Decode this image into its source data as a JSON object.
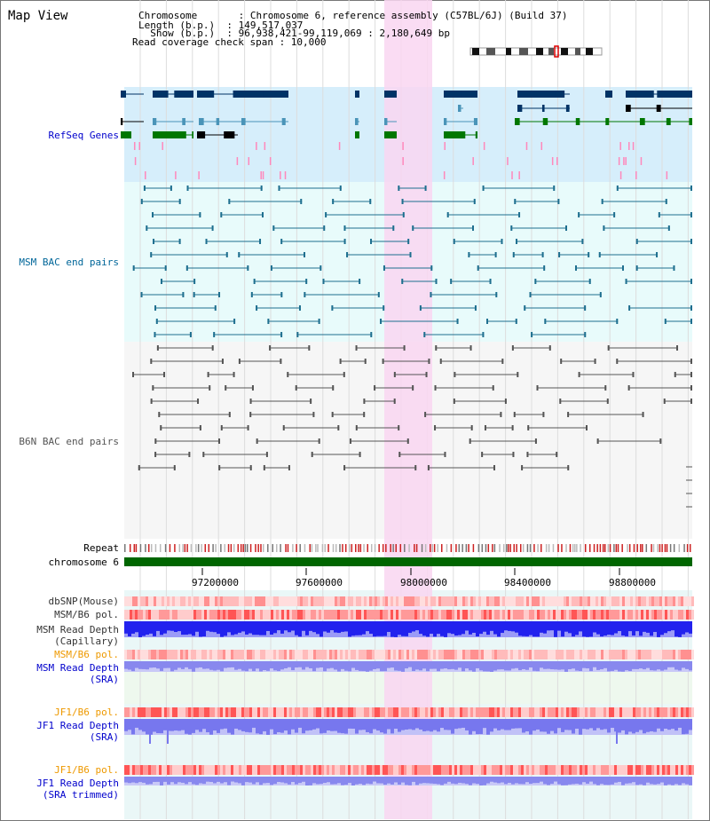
{
  "view": {
    "title": "Map View"
  },
  "info": {
    "chromosome_line": "Chromosome       : Chromosome 6, reference assembly (C57BL/6J) (Build 37)",
    "length_line": "Length (b.p.)  : 149,517,037",
    "show_line": "  Show (b.p.)  : 96,938,421-99,119,069 : 2,180,649 bp",
    "coverage_line": "Read coverage check span : 10,000"
  },
  "tracks": {
    "refseq": {
      "label": "RefSeq Genes",
      "color": "#0000cc"
    },
    "msm_bac": {
      "label": "MSM BAC end pairs",
      "color": "#006699"
    },
    "b6n_bac": {
      "label": "B6N BAC end pairs",
      "color": "#555555"
    },
    "repeat": {
      "label": "Repeat"
    },
    "chrom": {
      "label": "chromosome 6"
    },
    "dbsnp": {
      "label": "dbSNP(Mouse)"
    },
    "msm_pol": {
      "label": "MSM/B6 pol."
    },
    "msm_depth_cap": {
      "label": "MSM Read Depth\n(Capillary)"
    },
    "msm_pol2": {
      "label": "MSM/B6 pol.",
      "color": "#ee9900"
    },
    "msm_depth_sra": {
      "label": "MSM Read Depth\n(SRA)",
      "color": "#0000cc"
    },
    "jf1_pol": {
      "label": "JF1/B6 pol.",
      "color": "#ee9900"
    },
    "jf1_depth": {
      "label": "JF1 Read Depth\n(SRA)",
      "color": "#0000cc"
    },
    "jf1_pol2": {
      "label": "JF1/B6 pol.",
      "color": "#ee9900"
    },
    "jf1_depth_trim": {
      "label": "JF1 Read Depth\n(SRA trimmed)",
      "color": "#0000cc"
    }
  },
  "axis": {
    "ticks": [
      "97200000",
      "97600000",
      "98000000",
      "98400000",
      "98800000"
    ]
  },
  "colors": {
    "refseq_bg": "#d6eefb",
    "bac_bg": "#e8fbfb",
    "b6n_bg": "#f6f6f6",
    "highlight": "#f9d6f1",
    "chrom_bar": "#006600",
    "gene_dark": "#003366",
    "gene_mid": "#4a94b8",
    "gene_green": "#007700"
  }
}
